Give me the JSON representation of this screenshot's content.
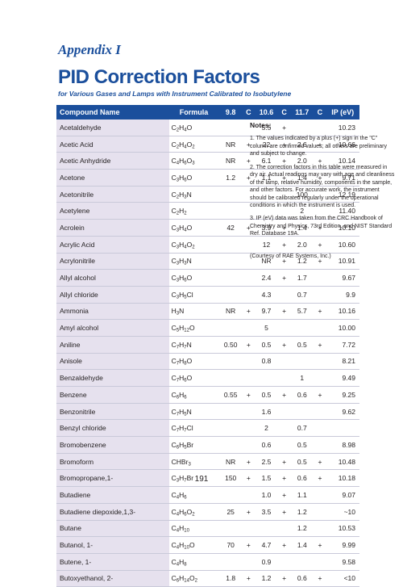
{
  "appendix_label": "Appendix I",
  "title": "PID Correction Factors",
  "subtitle": "for Various Gases and Lamps with Instrument Calibrated to Isobutylene",
  "table": {
    "headers": [
      "Compound Name",
      "Formula",
      "9.8",
      "C",
      "10.6",
      "C",
      "11.7",
      "C",
      "IP (eV)"
    ],
    "rows": [
      {
        "name": "Acetaldehyde",
        "formula": [
          "C",
          "2",
          "H",
          "4",
          "O"
        ],
        "v98": "",
        "c98": "",
        "v106": "5.5",
        "c106": "+",
        "v117": "",
        "c117": "",
        "ip": "10.23"
      },
      {
        "name": "Acetic Acid",
        "formula": [
          "C",
          "2",
          "H",
          "4",
          "O",
          "2"
        ],
        "v98": "NR",
        "c98": "+",
        "v106": "22",
        "c106": "+",
        "v117": "2.6",
        "c117": "+",
        "ip": "10.66"
      },
      {
        "name": "Acetic Anhydride",
        "formula": [
          "C",
          "4",
          "H",
          "6",
          "O",
          "3"
        ],
        "v98": "NR",
        "c98": "+",
        "v106": "6.1",
        "c106": "+",
        "v117": "2.0",
        "c117": "+",
        "ip": "10.14"
      },
      {
        "name": "Acetone",
        "formula": [
          "C",
          "3",
          "H",
          "6",
          "O"
        ],
        "v98": "1.2",
        "c98": "+",
        "v106": "1.1",
        "c106": "+",
        "v117": "1.4",
        "c117": "+",
        "ip": "9.71"
      },
      {
        "name": "Acetonitrile",
        "formula": [
          "C",
          "2",
          "H",
          "3",
          "N"
        ],
        "v98": "",
        "c98": "",
        "v106": "",
        "c106": "",
        "v117": "100",
        "c117": "",
        "ip": "12.19"
      },
      {
        "name": "Acetylene",
        "formula": [
          "C",
          "2",
          "H",
          "2"
        ],
        "v98": "",
        "c98": "",
        "v106": "",
        "c106": "",
        "v117": "2",
        "c117": "",
        "ip": "11.40"
      },
      {
        "name": "Acrolein",
        "formula": [
          "C",
          "3",
          "H",
          "4",
          "O"
        ],
        "v98": "42",
        "c98": "+",
        "v106": "3.9",
        "c106": "+",
        "v117": "1.4",
        "c117": "+",
        "ip": "10.10"
      },
      {
        "name": "Acrylic Acid",
        "formula": [
          "C",
          "3",
          "H",
          "4",
          "O",
          "2"
        ],
        "v98": "",
        "c98": "",
        "v106": "12",
        "c106": "+",
        "v117": "2.0",
        "c117": "+",
        "ip": "10.60"
      },
      {
        "name": "Acrylonitrile",
        "formula": [
          "C",
          "3",
          "H",
          "3",
          "N"
        ],
        "v98": "",
        "c98": "",
        "v106": "NR",
        "c106": "+",
        "v117": "1.2",
        "c117": "+",
        "ip": "10.91"
      },
      {
        "name": "Allyl alcohol",
        "formula": [
          "C",
          "3",
          "H",
          "6",
          "O"
        ],
        "v98": "",
        "c98": "",
        "v106": "2.4",
        "c106": "+",
        "v117": "1.7",
        "c117": "",
        "ip": "9.67"
      },
      {
        "name": "Allyl chloride",
        "formula": [
          "C",
          "3",
          "H",
          "5",
          "Cl"
        ],
        "v98": "",
        "c98": "",
        "v106": "4.3",
        "c106": "",
        "v117": "0.7",
        "c117": "",
        "ip": "9.9"
      },
      {
        "name": "Ammonia",
        "formula": [
          "H",
          "3",
          "N"
        ],
        "v98": "NR",
        "c98": "+",
        "v106": "9.7",
        "c106": "+",
        "v117": "5.7",
        "c117": "+",
        "ip": "10.16"
      },
      {
        "name": "Amyl alcohol",
        "formula": [
          "C",
          "5",
          "H",
          "12",
          "O"
        ],
        "v98": "",
        "c98": "",
        "v106": "5",
        "c106": "",
        "v117": "",
        "c117": "",
        "ip": "10.00"
      },
      {
        "name": "Aniline",
        "formula": [
          "C",
          "7",
          "H",
          "7",
          "N"
        ],
        "v98": "0.50",
        "c98": "+",
        "v106": "0.5",
        "c106": "+",
        "v117": "0.5",
        "c117": "+",
        "ip": "7.72"
      },
      {
        "name": "Anisole",
        "formula": [
          "C",
          "7",
          "H",
          "8",
          "O"
        ],
        "v98": "",
        "c98": "",
        "v106": "0.8",
        "c106": "",
        "v117": "",
        "c117": "",
        "ip": "8.21"
      },
      {
        "name": "Benzaldehyde",
        "formula": [
          "C",
          "7",
          "H",
          "6",
          "O"
        ],
        "v98": "",
        "c98": "",
        "v106": "",
        "c106": "",
        "v117": "1",
        "c117": "",
        "ip": "9.49"
      },
      {
        "name": "Benzene",
        "formula": [
          "C",
          "6",
          "H",
          "6"
        ],
        "v98": "0.55",
        "c98": "+",
        "v106": "0.5",
        "c106": "+",
        "v117": "0.6",
        "c117": "+",
        "ip": "9.25"
      },
      {
        "name": "Benzonitrile",
        "formula": [
          "C",
          "7",
          "H",
          "5",
          "N"
        ],
        "v98": "",
        "c98": "",
        "v106": "1.6",
        "c106": "",
        "v117": "",
        "c117": "",
        "ip": "9.62"
      },
      {
        "name": "Benzyl chloride",
        "formula": [
          "C",
          "7",
          "H",
          "7",
          "Cl"
        ],
        "v98": "",
        "c98": "",
        "v106": "2",
        "c106": "",
        "v117": "0.7",
        "c117": "",
        "ip": ""
      },
      {
        "name": "Bromobenzene",
        "formula": [
          "C",
          "6",
          "H",
          "5",
          "Br"
        ],
        "v98": "",
        "c98": "",
        "v106": "0.6",
        "c106": "",
        "v117": "0.5",
        "c117": "",
        "ip": "8.98"
      },
      {
        "name": "Bromoform",
        "formula": [
          "CHBr",
          "3"
        ],
        "v98": "NR",
        "c98": "+",
        "v106": "2.5",
        "c106": "+",
        "v117": "0.5",
        "c117": "+",
        "ip": "10.48"
      },
      {
        "name": "Bromopropane,1-",
        "formula": [
          "C",
          "3",
          "H",
          "7",
          "Br"
        ],
        "v98": "150",
        "c98": "+",
        "v106": "1.5",
        "c106": "+",
        "v117": "0.6",
        "c117": "+",
        "ip": "10.18"
      },
      {
        "name": "Butadiene",
        "formula": [
          "C",
          "4",
          "H",
          "6"
        ],
        "v98": "",
        "c98": "",
        "v106": "1.0",
        "c106": "+",
        "v117": "1.1",
        "c117": "",
        "ip": "9.07"
      },
      {
        "name": "Butadiene diepoxide,1,3-",
        "formula": [
          "C",
          "4",
          "H",
          "6",
          "O",
          "2"
        ],
        "v98": "25",
        "c98": "+",
        "v106": "3.5",
        "c106": "+",
        "v117": "1.2",
        "c117": "",
        "ip": "~10"
      },
      {
        "name": "Butane",
        "formula": [
          "C",
          "4",
          "H",
          "10"
        ],
        "v98": "",
        "c98": "",
        "v106": "",
        "c106": "",
        "v117": "1.2",
        "c117": "",
        "ip": "10.53"
      },
      {
        "name": "Butanol, 1-",
        "formula": [
          "C",
          "4",
          "H",
          "10",
          "O"
        ],
        "v98": "70",
        "c98": "+",
        "v106": "4.7",
        "c106": "+",
        "v117": "1.4",
        "c117": "+",
        "ip": "9.99"
      },
      {
        "name": "Butene, 1-",
        "formula": [
          "C",
          "4",
          "H",
          "8"
        ],
        "v98": "",
        "c98": "",
        "v106": "0.9",
        "c106": "",
        "v117": "",
        "c117": "",
        "ip": "9.58"
      },
      {
        "name": "Butoxyethanol, 2-",
        "formula": [
          "C",
          "6",
          "H",
          "14",
          "O",
          "2"
        ],
        "v98": "1.8",
        "c98": "+",
        "v106": "1.2",
        "c106": "+",
        "v117": "0.6",
        "c117": "+",
        "ip": "<10"
      }
    ]
  },
  "notes": {
    "heading": "Notes:",
    "items": [
      "1. The values indicated by a plus (+) sign in the \"C\" column are confirmed values; all others are preliminary and subject to change.",
      "2. The correction factors in this table were measured in dry air. Actual readings may vary with age and cleanliness of the lamp, relative humidity, components in the sample, and other factors. For accurate work, the instrument should be calibrated regularly under the operational conditions in which the instrument is used.",
      "3. IP (eV) data was taken from the CRC Handbook of Chemistry and Physics, 73rd Edition, and NIST Standard Ref. Database 19A."
    ],
    "courtesy": "(Courtesy of RAE Systems, Inc.)"
  },
  "page_number": "191",
  "colors": {
    "accent": "#1b4f9c",
    "header_bg": "#1b4f9c",
    "name_col_bg": "#e6e1ee",
    "row_rule": "#c9c9d9"
  }
}
